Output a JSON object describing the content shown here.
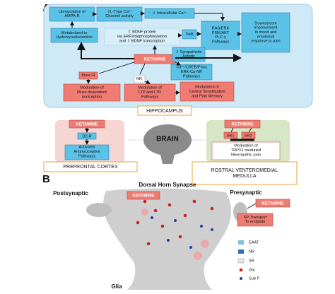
{
  "panel_a": {
    "label": "A",
    "hippocampus": {
      "title": "HIPPOCAMPUS",
      "ketamine": "KETAMINE",
      "nodes": {
        "ampa": [
          "Upregulation of",
          "AMPA-R"
        ],
        "ltype": [
          "⇧L-Type Ca²⁺",
          "Channel activity"
        ],
        "intra": [
          "⇩ Intracellular Ca²⁺"
        ],
        "ras": [
          "RAS/ERK",
          "PI3K/AKT",
          "PLC-γ",
          "Pathways"
        ],
        "downstream": [
          "Downstream",
          "improvement",
          "in mood and",
          "emotional",
          "response to pain"
        ],
        "metab": [
          "Metabolized to",
          "Hydroxynorketamine"
        ],
        "bdnf": [
          "⇧ BDNF protein",
          "via ERF2/dephosphorylation",
          "and ⇧ BDNF transcription"
        ],
        "trkb": [
          "TrkB"
        ],
        "symp": [
          "⇩ Sympathetic",
          "Activity"
        ],
        "creb": [
          "Ca²⁺/CREB/Phos",
          "ERK-Ca-NR",
          "Pathways"
        ],
        "muscr": [
          "Musc-R"
        ],
        "nr": [
          "NR"
        ],
        "musc_mod": [
          "Modulation of",
          "Musc-dependent",
          "nociception"
        ],
        "ltp": [
          "Modulation of",
          "LTP and LTD",
          "Pathways"
        ],
        "central": [
          "Modulation of",
          "Central Sensitization",
          "and Pain Memory"
        ]
      }
    },
    "brain": "BRAIN",
    "pfc": {
      "title": "PREFRONTAL CORTEX",
      "ketamine": "KETAMINE",
      "receptor": "D2-R",
      "effect": [
        "Activates",
        "Antinociceptive",
        "Pathways"
      ]
    },
    "rvm": {
      "title": [
        "ROSTRAL VENTEROMEDIAL",
        "MEDULLA"
      ],
      "ketamine": "KETAMINE",
      "receptors": [
        "SR1",
        "SR2"
      ],
      "effect": [
        "Modulation of",
        "TRPV1 mediated",
        "Neuropathic pain"
      ]
    }
  },
  "panel_b": {
    "label": "B",
    "title": "Dorsal Horn Synapse",
    "postsynaptic": "Postsynaptic",
    "presynaptic": "Presynaptic",
    "ketamine_post": "KETAMINE",
    "ketamine_pre": "KETAMINE",
    "sp_transport": [
      "SP-Transport",
      "To endplate"
    ],
    "glia": "Glia",
    "legend": [
      "EAAT",
      "NR",
      "SR",
      "Glu",
      "Sub P"
    ]
  }
}
